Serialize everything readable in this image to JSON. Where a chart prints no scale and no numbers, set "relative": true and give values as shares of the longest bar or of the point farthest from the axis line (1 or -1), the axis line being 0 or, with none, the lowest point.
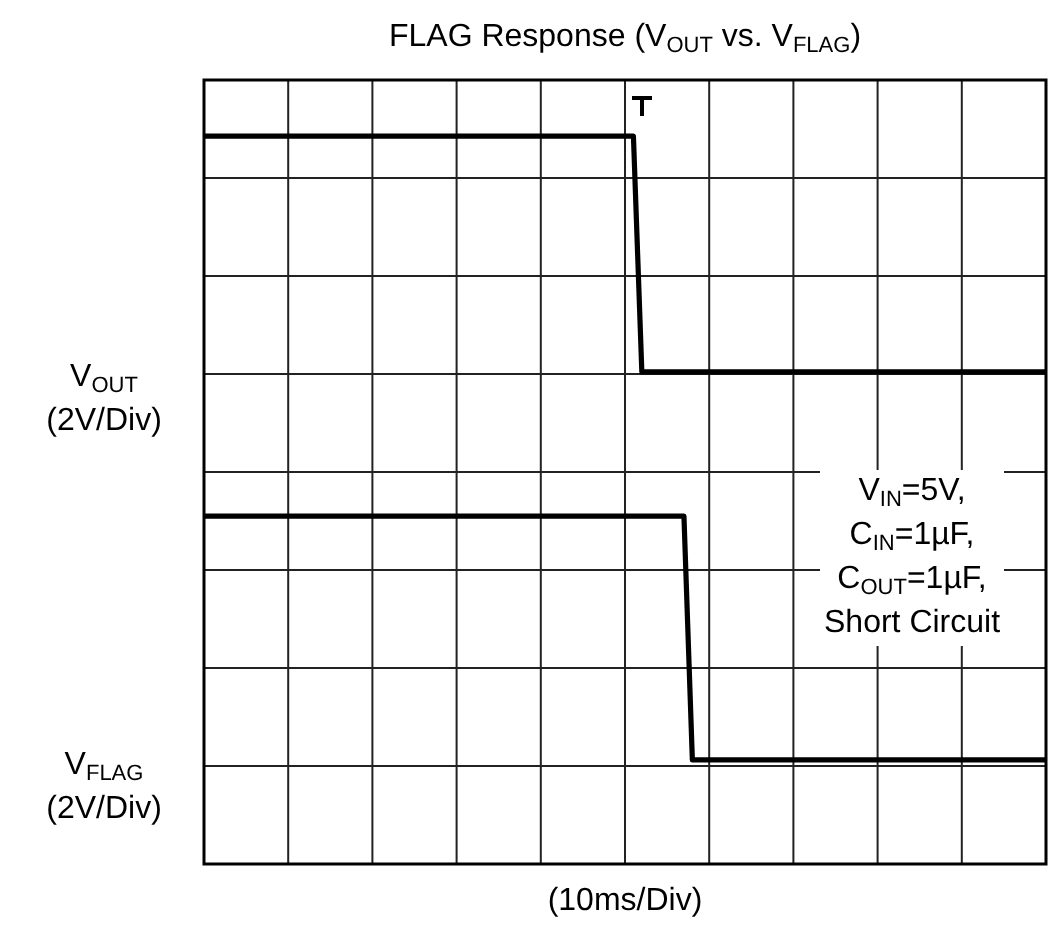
{
  "chart_data": {
    "type": "line",
    "title": "FLAG Response (V$_{OUT}$ vs. V$_{FLAG}$)",
    "xlabel": "(10ms/Div)",
    "annotations": [
      "V$_{IN}$=5V,\nC$_{IN}$=1µF,\nC$_{OUT}$=1µF,\nShort Circuit",
      "V$_{OUT}$\n(2V/Div)",
      "V$_{FLAG}$\n(2V/Div)"
    ],
    "relative": true,
    "grid": true,
    "legend": false,
    "tick_labels": false,
    "marker": "none",
    "line_style": "solid",
    "categories": [
      null,
      null,
      null,
      null,
      null,
      null,
      null,
      null,
      null,
      null,
      null,
      null,
      null,
      null,
      null,
      null,
      null,
      null,
      null,
      null,
      null,
      null,
      null,
      null,
      null,
      null,
      null,
      null,
      null,
      null,
      null,
      null,
      null,
      null,
      null,
      null,
      null,
      null,
      null,
      null,
      null,
      null,
      null,
      null,
      null,
      null,
      null,
      null,
      null,
      null,
      null,
      null,
      null,
      null,
      null,
      null,
      null,
      null,
      null,
      null,
      null,
      null,
      null,
      null,
      null,
      null,
      null,
      null,
      null,
      null,
      null,
      null,
      null,
      null,
      null,
      null,
      null,
      null,
      null,
      null,
      null,
      null,
      null,
      null,
      null,
      null,
      null,
      null,
      null,
      null,
      null,
      null,
      null,
      null,
      null,
      null,
      null,
      null,
      null,
      null,
      null
    ],
    "series": [
      {
        "color": "#000000",
        "values": [
          1,
          1,
          1,
          1,
          1,
          1,
          1,
          1,
          1,
          1,
          1,
          1,
          1,
          1,
          1,
          1,
          1,
          1,
          1,
          1,
          1,
          1,
          1,
          1,
          1,
          1,
          1,
          1,
          1,
          1,
          1,
          1,
          1,
          1,
          1,
          1,
          1,
          1,
          1,
          1,
          1,
          1,
          1,
          1,
          1,
          1,
          1,
          1,
          1,
          1,
          1,
          1,
          0.676,
          0.676,
          0.676,
          0.676,
          0.676,
          0.676,
          0.676,
          0.676,
          0.676,
          0.676,
          0.676,
          0.676,
          0.676,
          0.676,
          0.676,
          0.676,
          0.676,
          0.676,
          0.676,
          0.676,
          0.676,
          0.676,
          0.676,
          0.676,
          0.676,
          0.676,
          0.676,
          0.676,
          0.676,
          0.676,
          0.676,
          0.676,
          0.676,
          0.676,
          0.676,
          0.676,
          0.676,
          0.676,
          0.676,
          0.676,
          0.676,
          0.676,
          0.676,
          0.676,
          0.676,
          0.676,
          0.676,
          0.676,
          0.676
        ]
      },
      {
        "color": "#000000",
        "values": [
          0.478,
          0.478,
          0.478,
          0.478,
          0.478,
          0.478,
          0.478,
          0.478,
          0.478,
          0.478,
          0.478,
          0.478,
          0.478,
          0.478,
          0.478,
          0.478,
          0.478,
          0.478,
          0.478,
          0.478,
          0.478,
          0.478,
          0.478,
          0.478,
          0.478,
          0.478,
          0.478,
          0.478,
          0.478,
          0.478,
          0.478,
          0.478,
          0.478,
          0.478,
          0.478,
          0.478,
          0.478,
          0.478,
          0.478,
          0.478,
          0.478,
          0.478,
          0.478,
          0.478,
          0.478,
          0.478,
          0.478,
          0.478,
          0.478,
          0.478,
          0.478,
          0.478,
          0.478,
          0.478,
          0.478,
          0.478,
          0.478,
          0.478,
          0.143,
          0.143,
          0.143,
          0.143,
          0.143,
          0.143,
          0.143,
          0.143,
          0.143,
          0.143,
          0.143,
          0.143,
          0.143,
          0.143,
          0.143,
          0.143,
          0.143,
          0.143,
          0.143,
          0.143,
          0.143,
          0.143,
          0.143,
          0.143,
          0.143,
          0.143,
          0.143,
          0.143,
          0.143,
          0.143,
          0.143,
          0.143,
          0.143,
          0.143,
          0.143,
          0.143,
          0.143,
          0.143,
          0.143,
          0.143,
          0.143,
          0.143,
          0.143
        ]
      }
    ]
  }
}
